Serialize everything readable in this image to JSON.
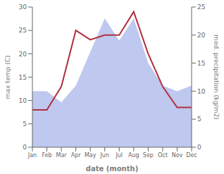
{
  "chart_data": {
    "type": "line",
    "categories": [
      "Jan",
      "Feb",
      "Mar",
      "Apr",
      "May",
      "Jun",
      "Jul",
      "Aug",
      "Sep",
      "Oct",
      "Nov",
      "Dec"
    ],
    "series": [
      {
        "type": "area",
        "color": "#bfc8ee",
        "axis": "y2",
        "values": [
          10,
          10,
          8,
          11,
          17,
          23,
          19,
          23,
          15,
          11,
          10,
          11
        ]
      },
      {
        "type": "line",
        "color": "#b03040",
        "values": [
          8,
          8,
          13,
          25,
          23,
          24,
          24,
          29,
          20,
          13,
          8.5,
          8.5
        ]
      }
    ],
    "xlabel": "date (month)",
    "ylabel": "max temp (C)",
    "y2label": "med. precipitation (kg/m2)",
    "ylim": [
      0,
      30
    ],
    "yticks": [
      0,
      5,
      10,
      15,
      20,
      25,
      30
    ],
    "y2lim": [
      0,
      25
    ],
    "y2ticks": [
      0,
      5,
      10,
      15,
      20,
      25
    ],
    "grid": false
  }
}
